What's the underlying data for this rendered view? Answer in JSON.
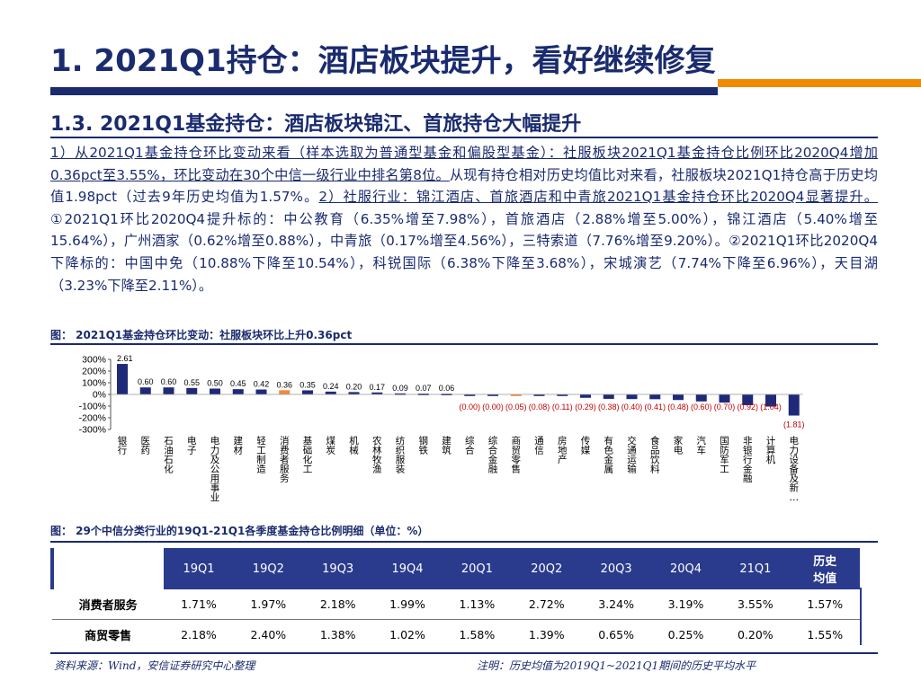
{
  "header": {
    "title": "1. 2021Q1持仓：酒店板块提升，看好继续修复",
    "subtitle": "1.3. 2021Q1基金持仓：酒店板块锦江、首旅持仓大幅提升"
  },
  "body": {
    "part1": "1）从2021Q1基金持仓环比变动来看（样本选取为普通型基金和偏股型基金）：社服板块2021Q1基金持仓比例环比2020Q4增加0.36pct至3.55%，环比变动在30个中信一级行业中排名第8位。",
    "part2": "从现有持仓相对历史均值比对来看，社服板块2021Q1持仓高于历史均值1.98pct（过去9年历史均值为1.57%。",
    "part3": "2）社服行业：锦江酒店、首旅酒店和中青旅2021Q1基金持仓环比2020Q4显著提升。",
    "part4": "①2021Q1环比2020Q4提升标的：中公教育（6.35%增至7.98%），首旅酒店（2.88%增至5.00%），锦江酒店（5.40%增至15.64%），广州酒家（0.62%增至0.88%），中青旅（0.17%增至4.56%），三特索道（7.76%增至9.20%）。②2021Q1环比2020Q4下降标的：中国中免（10.88%下降至10.54%），科锐国际（6.38%下降至3.68%），宋城演艺（7.74%下降至6.96%），天目湖（3.23%下降至2.11%）。"
  },
  "figure1": {
    "caption": "图： 2021Q1基金持仓环比变动：社服板块环比上升0.36pct"
  },
  "figure2": {
    "caption": "图： 29个中信分类行业的19Q1-21Q1各季度基金持仓比例明细（单位：%）"
  },
  "chart_data": {
    "type": "bar",
    "categories": [
      "银行",
      "医药",
      "石油石化",
      "电子",
      "电力及公用事业",
      "建材",
      "轻工制造",
      "消费者服务",
      "基础化工",
      "煤炭",
      "机械",
      "农林牧渔",
      "纺织服装",
      "钢铁",
      "建筑",
      "综合",
      "综合金融",
      "商贸零售",
      "通信",
      "房地产",
      "传媒",
      "有色金属",
      "交通运输",
      "食品饮料",
      "家电",
      "汽车",
      "国防军工",
      "非银行金融",
      "计算机",
      "电力设备及新…"
    ],
    "values": [
      2.61,
      0.6,
      0.6,
      0.55,
      0.5,
      0.45,
      0.42,
      0.36,
      0.35,
      0.24,
      0.2,
      0.17,
      0.09,
      0.07,
      0.06,
      0.0,
      0.0,
      -0.05,
      -0.08,
      -0.11,
      -0.29,
      -0.38,
      -0.4,
      -0.41,
      -0.48,
      -0.6,
      -0.7,
      -0.92,
      -1.04,
      -1.81
    ],
    "value_labels": [
      "2.61",
      "0.60",
      "0.60",
      "0.55",
      "0.50",
      "0.45",
      "0.42",
      "0.36",
      "0.35",
      "0.24",
      "0.20",
      "0.17",
      "0.09",
      "0.07",
      "0.06",
      "(0.00)",
      "(0.00)",
      "(0.05)",
      "(0.08)",
      "(0.11)",
      "(0.29)",
      "(0.38)",
      "(0.40)",
      "(0.41)",
      "(0.48)",
      "(0.60)",
      "(0.70)",
      "(0.92)",
      "(1.04)",
      "(1.81)"
    ],
    "y_ticks": [
      "300%",
      "200%",
      "100%",
      "0%",
      "-100%",
      "-200%",
      "-300%"
    ],
    "ylim": [
      -3,
      3
    ],
    "colors": {
      "bar": "#1e2a78",
      "highlight": "#f08a3c",
      "negative_label": "#c00000",
      "positive_label": "#000000"
    },
    "highlight": [
      "消费者服务",
      "商贸零售"
    ]
  },
  "table": {
    "headers": [
      "19Q1",
      "19Q2",
      "19Q3",
      "19Q4",
      "20Q1",
      "20Q2",
      "20Q3",
      "20Q4",
      "21Q1",
      "历史\n均值"
    ],
    "rows": [
      {
        "label": "消费者服务",
        "values": [
          "1.71%",
          "1.97%",
          "2.18%",
          "1.99%",
          "1.13%",
          "2.72%",
          "3.24%",
          "3.19%",
          "3.55%",
          "1.57%"
        ]
      },
      {
        "label": "商贸零售",
        "values": [
          "2.18%",
          "2.40%",
          "1.38%",
          "1.02%",
          "1.58%",
          "1.39%",
          "0.65%",
          "0.25%",
          "0.20%",
          "1.55%"
        ]
      }
    ]
  },
  "footer": {
    "source": "资料来源：Wind，安信证券研究中心整理",
    "note": "注明：历史均值为2019Q1~2021Q1期间的历史平均水平"
  }
}
